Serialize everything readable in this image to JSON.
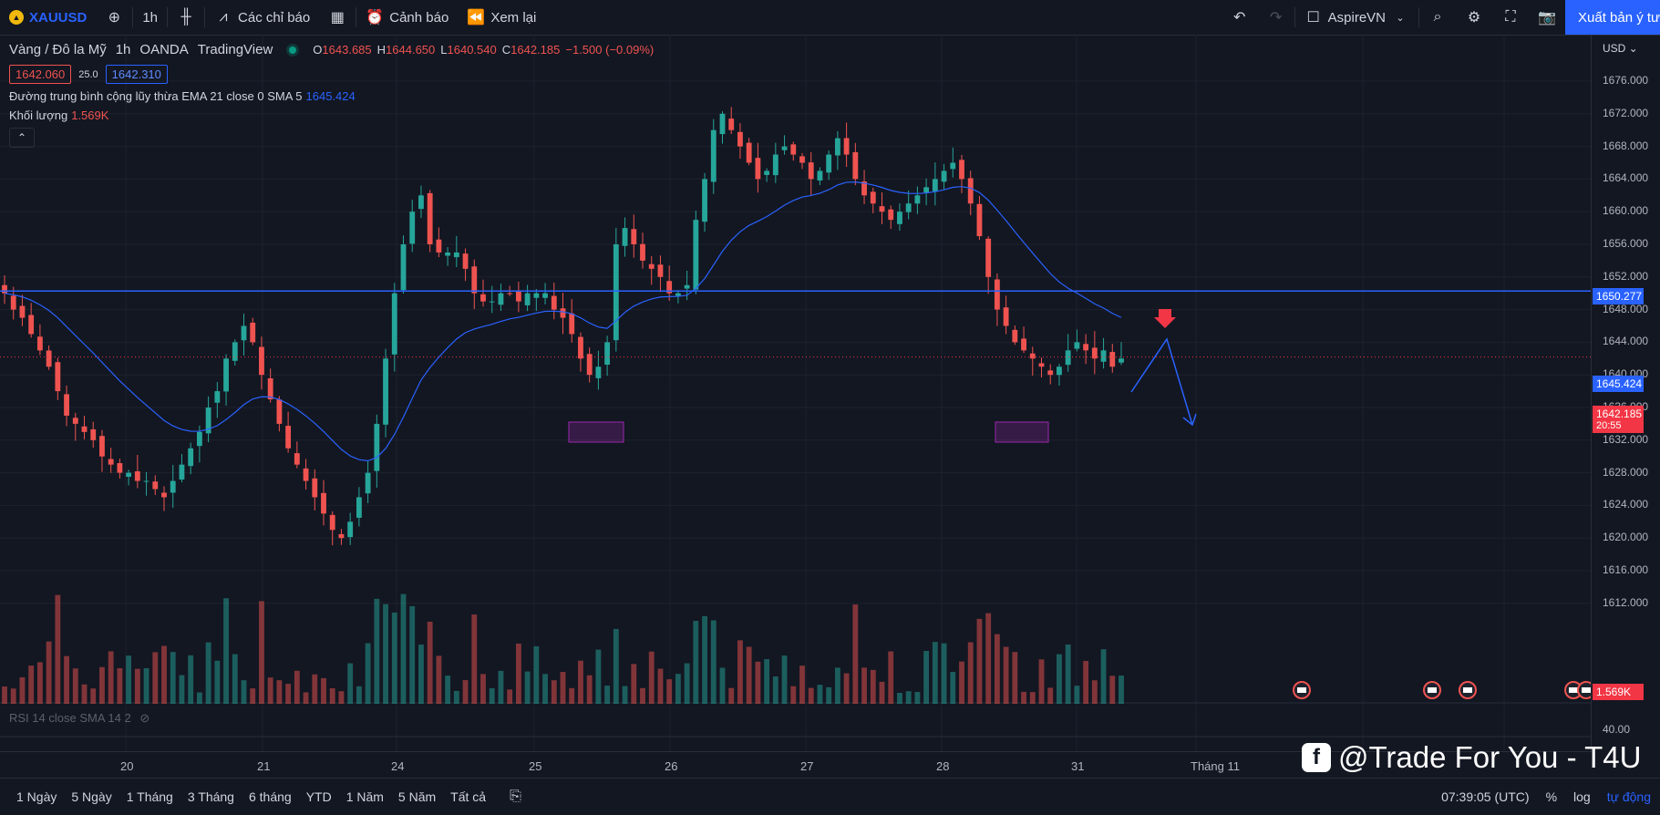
{
  "topbar": {
    "symbol": "XAUUSD",
    "interval": "1h",
    "indicators_label": "Các chỉ báo",
    "alerts_label": "Cảnh báo",
    "replay_label": "Xem lại",
    "layout_name": "AspireVN",
    "publish_label": "Xuất bản ý tưởng"
  },
  "legend": {
    "title": "Vàng / Đô la Mỹ",
    "interval": "1h",
    "broker": "OANDA",
    "platform": "TradingView",
    "o_key": "O",
    "o_val": "1643.685",
    "h_key": "H",
    "h_val": "1644.650",
    "l_key": "L",
    "l_val": "1640.540",
    "c_key": "C",
    "c_val": "1642.185",
    "change": "−1.500 (−0.09%)",
    "bid": "1642.060",
    "spread": "25.0",
    "ask": "1642.310"
  },
  "indicator": {
    "name": "Đường trung bình cộng lũy thừa EMA 21 close 0 SMA 5",
    "value": "1645.424"
  },
  "volume": {
    "name": "Khối lượng",
    "value": "1.569K"
  },
  "rsi": {
    "name": "RSI 14 close SMA 14 2"
  },
  "price_axis": {
    "currency": "USD",
    "ticks": [
      "1676.000",
      "1672.000",
      "1668.000",
      "1664.000",
      "1660.000",
      "1656.000",
      "1652.000",
      "1648.000",
      "1644.000",
      "1640.000",
      "1636.000",
      "1632.000",
      "1628.000",
      "1624.000",
      "1620.000",
      "1616.000",
      "1612.000"
    ],
    "rsi_tick": "40.00",
    "level_tag": "1650.277",
    "ema_tag": "1645.424",
    "price_tag": "1642.185",
    "countdown": "20:55",
    "volume_tag": "1.569K"
  },
  "time_axis": [
    "20",
    "21",
    "24",
    "25",
    "26",
    "27",
    "28",
    "31",
    "Tháng 11"
  ],
  "bottombar": {
    "ranges": [
      "1 Ngày",
      "5 Ngày",
      "1 Tháng",
      "3 Tháng",
      "6 tháng",
      "YTD",
      "1 Năm",
      "5 Năm",
      "Tất cả"
    ],
    "clock": "07:39:05 (UTC)",
    "percent": "%",
    "log": "log",
    "auto": "tự động"
  },
  "watermark": "@Trade For You - T4U",
  "chart_data": {
    "type": "candlestick",
    "symbol": "XAUUSD",
    "interval": "1h",
    "y_range": [
      1612,
      1679
    ],
    "horizontal_level": 1650.277,
    "last_price": 1642.185,
    "ema_last": 1645.424,
    "closes": [
      1650,
      1648,
      1647,
      1645,
      1643,
      1641,
      1638,
      1635,
      1634,
      1633,
      1632,
      1630,
      1629,
      1628,
      1628,
      1627,
      1627,
      1626,
      1625,
      1627,
      1629,
      1631,
      1633,
      1636,
      1638,
      1642,
      1644,
      1646,
      1644,
      1640,
      1637,
      1634,
      1631,
      1629,
      1627,
      1625,
      1623,
      1621,
      1620,
      1622,
      1625,
      1628,
      1634,
      1642,
      1650,
      1656,
      1660,
      1662,
      1656,
      1655,
      1655,
      1655,
      1653,
      1650,
      1649,
      1649,
      1650,
      1650,
      1649,
      1650,
      1650,
      1650,
      1648,
      1647,
      1645,
      1642,
      1640,
      1641,
      1644,
      1656,
      1658,
      1656,
      1654,
      1653,
      1652,
      1650,
      1650,
      1651,
      1659,
      1664,
      1670,
      1672,
      1670,
      1668,
      1666,
      1664,
      1665,
      1667,
      1668,
      1667,
      1666,
      1664,
      1665,
      1667,
      1669,
      1667,
      1664,
      1662,
      1661,
      1660,
      1659,
      1660,
      1661,
      1662,
      1663,
      1664,
      1665,
      1666,
      1664,
      1661,
      1657,
      1652,
      1648,
      1646,
      1644,
      1643,
      1642,
      1641,
      1640,
      1641,
      1643,
      1644,
      1643,
      1642,
      1643,
      1641,
      1642
    ],
    "volume_max": "1.569K"
  }
}
